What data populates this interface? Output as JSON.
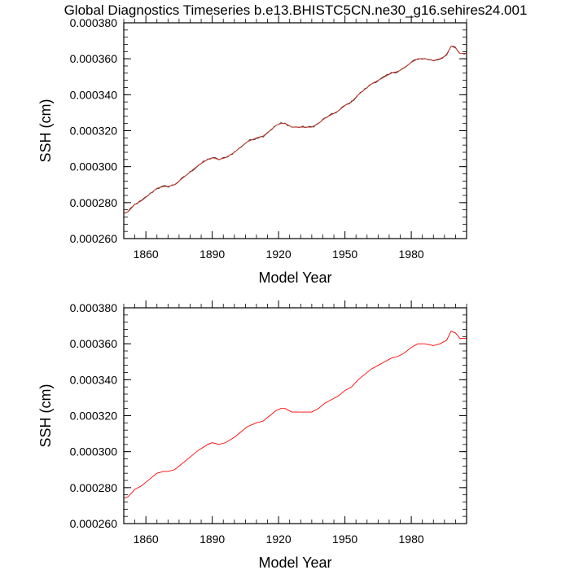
{
  "title": "Global Diagnostics Timeseries b.e13.BHISTC5CN.ne30_g16.sehires24.001",
  "chart_data": [
    {
      "type": "line",
      "xlabel": "Model Year",
      "ylabel": "SSH (cm)",
      "xlim": [
        1850,
        2005
      ],
      "ylim": [
        0.00026,
        0.00038
      ],
      "xticks": [
        1860,
        1890,
        1920,
        1950,
        1980
      ],
      "xtick_labels": [
        "1860",
        "1890",
        "1920",
        "1950",
        "1980"
      ],
      "yticks": [
        0.00026,
        0.00028,
        0.0003,
        0.00032,
        0.00034,
        0.00036,
        0.00038
      ],
      "ytick_labels": [
        "0.000260",
        "0.000280",
        "0.000300",
        "0.000320",
        "0.000340",
        "0.000360",
        "0.000380"
      ],
      "grid": false,
      "series": [
        {
          "color": "#8b0000",
          "style": "annual (noisy) series overlaid with red smoothed series",
          "x": [
            1850,
            1852,
            1855,
            1858,
            1860,
            1862,
            1865,
            1868,
            1870,
            1873,
            1876,
            1880,
            1884,
            1888,
            1890,
            1893,
            1896,
            1900,
            1903,
            1906,
            1910,
            1913,
            1916,
            1919,
            1921,
            1923,
            1926,
            1929,
            1932,
            1935,
            1938,
            1941,
            1944,
            1947,
            1950,
            1953,
            1956,
            1959,
            1962,
            1965,
            1968,
            1971,
            1974,
            1977,
            1980,
            1983,
            1986,
            1990,
            1993,
            1996,
            1998,
            2000,
            2002,
            2005
          ],
          "y": [
            0.000274,
            0.000275,
            0.000279,
            0.000281,
            0.000283,
            0.000285,
            0.000288,
            0.000289,
            0.000289,
            0.00029,
            0.000293,
            0.000297,
            0.000301,
            0.000304,
            0.000305,
            0.000304,
            0.000305,
            0.000308,
            0.000311,
            0.000314,
            0.000316,
            0.000317,
            0.00032,
            0.000323,
            0.000324,
            0.000324,
            0.000322,
            0.000322,
            0.000322,
            0.000322,
            0.000324,
            0.000327,
            0.000329,
            0.000331,
            0.000334,
            0.000336,
            0.00034,
            0.000343,
            0.000346,
            0.000348,
            0.00035,
            0.000352,
            0.000353,
            0.000355,
            0.000358,
            0.00036,
            0.00036,
            0.000359,
            0.00036,
            0.000362,
            0.000367,
            0.000366,
            0.000363,
            0.000363
          ]
        }
      ]
    },
    {
      "type": "line",
      "xlabel": "Model Year",
      "ylabel": "SSH (cm)",
      "xlim": [
        1850,
        2005
      ],
      "ylim": [
        0.00026,
        0.00038
      ],
      "xticks": [
        1860,
        1890,
        1920,
        1950,
        1980
      ],
      "xtick_labels": [
        "1860",
        "1890",
        "1920",
        "1950",
        "1980"
      ],
      "yticks": [
        0.00026,
        0.00028,
        0.0003,
        0.00032,
        0.00034,
        0.00036,
        0.00038
      ],
      "ytick_labels": [
        "0.000260",
        "0.000280",
        "0.000300",
        "0.000320",
        "0.000340",
        "0.000360",
        "0.000380"
      ],
      "grid": false,
      "series": [
        {
          "color": "#ff0000",
          "style": "smoothed series only",
          "x": [
            1850,
            1852,
            1855,
            1858,
            1860,
            1862,
            1865,
            1868,
            1870,
            1873,
            1876,
            1880,
            1884,
            1888,
            1890,
            1893,
            1896,
            1900,
            1903,
            1906,
            1910,
            1913,
            1916,
            1919,
            1921,
            1923,
            1926,
            1929,
            1932,
            1935,
            1938,
            1941,
            1944,
            1947,
            1950,
            1953,
            1956,
            1959,
            1962,
            1965,
            1968,
            1971,
            1974,
            1977,
            1980,
            1983,
            1986,
            1990,
            1993,
            1996,
            1998,
            2000,
            2002,
            2005
          ],
          "y": [
            0.000274,
            0.000275,
            0.000279,
            0.000281,
            0.000283,
            0.000285,
            0.000288,
            0.000289,
            0.000289,
            0.00029,
            0.000293,
            0.000297,
            0.000301,
            0.000304,
            0.000305,
            0.000304,
            0.000305,
            0.000308,
            0.000311,
            0.000314,
            0.000316,
            0.000317,
            0.00032,
            0.000323,
            0.000324,
            0.000324,
            0.000322,
            0.000322,
            0.000322,
            0.000322,
            0.000324,
            0.000327,
            0.000329,
            0.000331,
            0.000334,
            0.000336,
            0.00034,
            0.000343,
            0.000346,
            0.000348,
            0.00035,
            0.000352,
            0.000353,
            0.000355,
            0.000358,
            0.00036,
            0.00036,
            0.000359,
            0.00036,
            0.000362,
            0.000367,
            0.000366,
            0.000363,
            0.000363
          ]
        }
      ]
    }
  ]
}
